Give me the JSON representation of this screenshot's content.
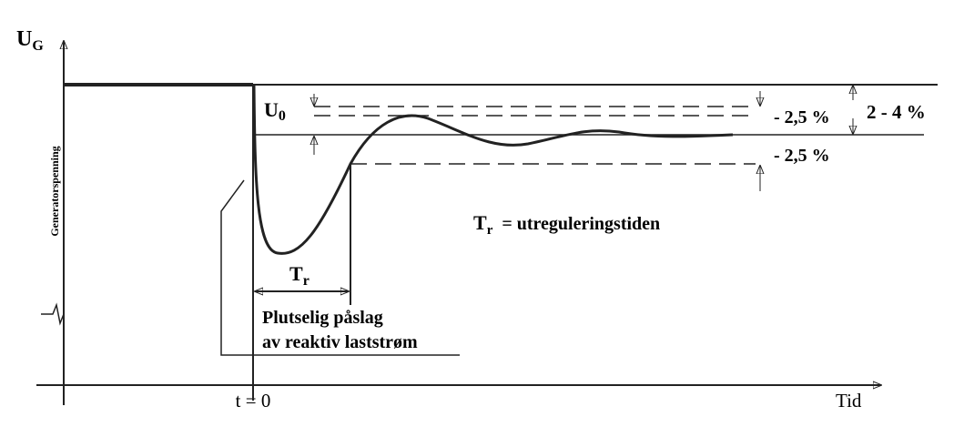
{
  "axes": {
    "y_label": {
      "main": "U",
      "sub": "G"
    },
    "y_title": "Generatorspenning",
    "x_label": "Tid",
    "t0_label": "t = 0"
  },
  "annotations": {
    "u0": {
      "main": "U",
      "sub": "0"
    },
    "tol_upper": "- 2,5 %",
    "tol_lower": "- 2,5 %",
    "band": "2 - 4 %",
    "tr": {
      "main": "T",
      "sub": "r"
    },
    "tr_def": {
      "main": "T",
      "sub": "r",
      "text": "= utreguleringstiden"
    },
    "event_line1": "Plutselig påslag",
    "event_line2": "av reaktiv laststrøm"
  }
}
